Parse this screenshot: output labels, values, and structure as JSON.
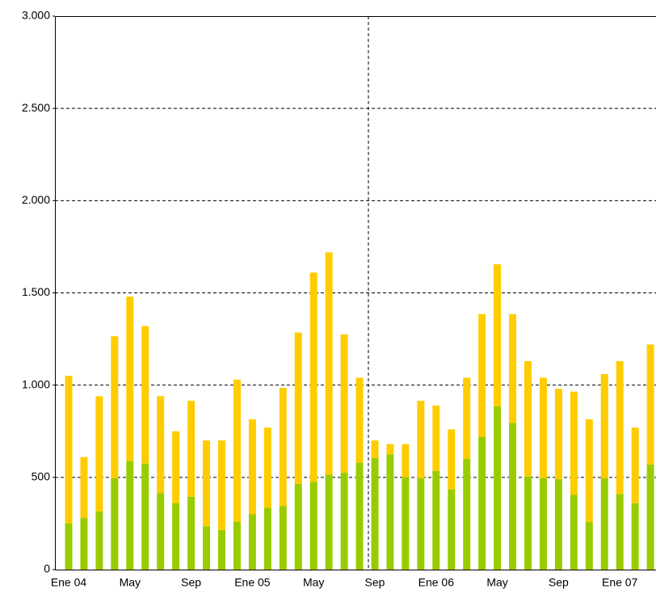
{
  "chart_data": {
    "type": "stacked_bar",
    "categories": [
      "Ene 04",
      null,
      null,
      null,
      "May",
      null,
      null,
      null,
      "Sep",
      null,
      null,
      null,
      "Ene 05",
      null,
      null,
      null,
      "May",
      null,
      null,
      null,
      "Sep",
      null,
      null,
      null,
      "Ene 06",
      null,
      null,
      null,
      "May",
      null,
      null,
      null,
      "Sep",
      null,
      null,
      null,
      "Ene 07",
      null,
      null
    ],
    "series": [
      {
        "color": "#99cc00",
        "values": [
          250,
          280,
          315,
          495,
          590,
          575,
          415,
          360,
          395,
          235,
          215,
          260,
          300,
          335,
          345,
          465,
          475,
          515,
          525,
          580,
          605,
          625,
          500,
          495,
          535,
          435,
          600,
          720,
          885,
          795,
          505,
          495,
          490,
          405,
          260,
          495,
          410,
          360,
          570
        ]
      },
      {
        "color": "#ffcc00",
        "values": [
          800,
          330,
          625,
          770,
          890,
          745,
          525,
          390,
          520,
          465,
          485,
          770,
          515,
          435,
          640,
          820,
          1135,
          1205,
          750,
          460,
          95,
          55,
          180,
          420,
          355,
          325,
          440,
          665,
          770,
          590,
          625,
          545,
          490,
          560,
          555,
          565,
          720,
          410,
          650
        ]
      }
    ],
    "ylim": [
      0,
      3000
    ],
    "yticks": [
      0,
      500,
      {
        "value": 1000,
        "label": "1.000"
      },
      {
        "value": 1500,
        "label": "1.500"
      },
      {
        "value": 2000,
        "label": "2.000"
      },
      {
        "value": 2500,
        "label": "2.500"
      },
      {
        "value": 3000,
        "label": "3.000"
      }
    ],
    "grid": true
  }
}
